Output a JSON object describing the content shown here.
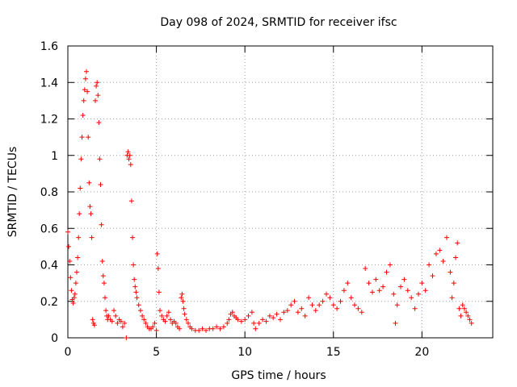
{
  "chart_data": {
    "type": "scatter",
    "title": "Day 098 of 2024, SRMTID for receiver ifsc",
    "xlabel": "GPS time / hours",
    "ylabel": "SRMTID / TECUs",
    "xlim": [
      0,
      24
    ],
    "ylim": [
      0,
      1.6
    ],
    "x_ticks": [
      0,
      5,
      10,
      15,
      20
    ],
    "y_ticks": [
      0,
      0.2,
      0.4,
      0.6,
      0.8,
      1,
      1.2,
      1.4,
      1.6
    ],
    "x_tick_labels": [
      "0",
      "5",
      "10",
      "15",
      "20"
    ],
    "y_tick_labels": [
      "0",
      "0.2",
      "0.4",
      "0.6",
      "0.8",
      "1",
      "1.2",
      "1.4",
      "1.6"
    ],
    "grid": true,
    "marker": "+",
    "color": "#ff0000",
    "series": [
      {
        "name": "SRMTID",
        "points": [
          [
            0.0,
            0.58
          ],
          [
            0.05,
            0.5
          ],
          [
            0.1,
            0.42
          ],
          [
            0.15,
            0.33
          ],
          [
            0.2,
            0.26
          ],
          [
            0.25,
            0.21
          ],
          [
            0.3,
            0.19
          ],
          [
            0.35,
            0.22
          ],
          [
            0.4,
            0.24
          ],
          [
            0.45,
            0.3
          ],
          [
            0.5,
            0.36
          ],
          [
            0.55,
            0.44
          ],
          [
            0.6,
            0.55
          ],
          [
            0.65,
            0.68
          ],
          [
            0.7,
            0.82
          ],
          [
            0.75,
            0.98
          ],
          [
            0.8,
            1.1
          ],
          [
            0.85,
            1.22
          ],
          [
            0.9,
            1.3
          ],
          [
            0.95,
            1.36
          ],
          [
            1.0,
            1.42
          ],
          [
            1.05,
            1.46
          ],
          [
            1.1,
            1.35
          ],
          [
            1.15,
            1.1
          ],
          [
            1.2,
            0.85
          ],
          [
            1.25,
            0.72
          ],
          [
            1.3,
            0.68
          ],
          [
            1.35,
            0.55
          ],
          [
            1.4,
            0.1
          ],
          [
            1.45,
            0.08
          ],
          [
            1.5,
            0.07
          ],
          [
            1.55,
            1.3
          ],
          [
            1.6,
            1.38
          ],
          [
            1.65,
            1.4
          ],
          [
            1.7,
            1.33
          ],
          [
            1.75,
            1.18
          ],
          [
            1.8,
            0.98
          ],
          [
            1.85,
            0.84
          ],
          [
            1.9,
            0.62
          ],
          [
            1.95,
            0.42
          ],
          [
            2.0,
            0.34
          ],
          [
            2.05,
            0.3
          ],
          [
            2.1,
            0.22
          ],
          [
            2.15,
            0.15
          ],
          [
            2.2,
            0.12
          ],
          [
            2.25,
            0.1
          ],
          [
            2.3,
            0.12
          ],
          [
            2.4,
            0.1
          ],
          [
            2.5,
            0.09
          ],
          [
            2.6,
            0.15
          ],
          [
            2.7,
            0.12
          ],
          [
            2.8,
            0.08
          ],
          [
            2.9,
            0.1
          ],
          [
            3.0,
            0.09
          ],
          [
            3.1,
            0.06
          ],
          [
            3.2,
            0.08
          ],
          [
            3.3,
            0.0
          ],
          [
            3.35,
            1.0
          ],
          [
            3.4,
            1.02
          ],
          [
            3.45,
            0.98
          ],
          [
            3.5,
            1.0
          ],
          [
            3.55,
            0.95
          ],
          [
            3.6,
            0.75
          ],
          [
            3.65,
            0.55
          ],
          [
            3.7,
            0.4
          ],
          [
            3.75,
            0.32
          ],
          [
            3.8,
            0.28
          ],
          [
            3.85,
            0.25
          ],
          [
            3.9,
            0.22
          ],
          [
            4.0,
            0.18
          ],
          [
            4.1,
            0.15
          ],
          [
            4.2,
            0.12
          ],
          [
            4.3,
            0.1
          ],
          [
            4.4,
            0.08
          ],
          [
            4.5,
            0.06
          ],
          [
            4.6,
            0.05
          ],
          [
            4.7,
            0.05
          ],
          [
            4.8,
            0.06
          ],
          [
            4.9,
            0.08
          ],
          [
            5.0,
            0.04
          ],
          [
            5.05,
            0.46
          ],
          [
            5.1,
            0.38
          ],
          [
            5.15,
            0.25
          ],
          [
            5.2,
            0.15
          ],
          [
            5.3,
            0.12
          ],
          [
            5.4,
            0.1
          ],
          [
            5.5,
            0.09
          ],
          [
            5.6,
            0.12
          ],
          [
            5.7,
            0.14
          ],
          [
            5.8,
            0.1
          ],
          [
            5.9,
            0.08
          ],
          [
            6.0,
            0.09
          ],
          [
            6.1,
            0.08
          ],
          [
            6.2,
            0.06
          ],
          [
            6.3,
            0.05
          ],
          [
            6.4,
            0.22
          ],
          [
            6.45,
            0.24
          ],
          [
            6.5,
            0.2
          ],
          [
            6.55,
            0.16
          ],
          [
            6.6,
            0.13
          ],
          [
            6.7,
            0.1
          ],
          [
            6.8,
            0.08
          ],
          [
            6.9,
            0.06
          ],
          [
            7.0,
            0.05
          ],
          [
            7.2,
            0.04
          ],
          [
            7.4,
            0.04
          ],
          [
            7.6,
            0.05
          ],
          [
            7.8,
            0.04
          ],
          [
            8.0,
            0.05
          ],
          [
            8.2,
            0.05
          ],
          [
            8.4,
            0.06
          ],
          [
            8.6,
            0.05
          ],
          [
            8.8,
            0.06
          ],
          [
            9.0,
            0.08
          ],
          [
            9.1,
            0.1
          ],
          [
            9.2,
            0.13
          ],
          [
            9.3,
            0.14
          ],
          [
            9.4,
            0.12
          ],
          [
            9.5,
            0.11
          ],
          [
            9.6,
            0.1
          ],
          [
            9.8,
            0.09
          ],
          [
            10.0,
            0.1
          ],
          [
            10.2,
            0.12
          ],
          [
            10.4,
            0.14
          ],
          [
            10.5,
            0.08
          ],
          [
            10.6,
            0.05
          ],
          [
            10.8,
            0.08
          ],
          [
            11.0,
            0.1
          ],
          [
            11.2,
            0.09
          ],
          [
            11.4,
            0.12
          ],
          [
            11.6,
            0.11
          ],
          [
            11.8,
            0.13
          ],
          [
            12.0,
            0.1
          ],
          [
            12.2,
            0.14
          ],
          [
            12.4,
            0.15
          ],
          [
            12.6,
            0.18
          ],
          [
            12.8,
            0.2
          ],
          [
            13.0,
            0.14
          ],
          [
            13.2,
            0.16
          ],
          [
            13.4,
            0.12
          ],
          [
            13.6,
            0.22
          ],
          [
            13.8,
            0.18
          ],
          [
            14.0,
            0.15
          ],
          [
            14.2,
            0.18
          ],
          [
            14.4,
            0.2
          ],
          [
            14.6,
            0.24
          ],
          [
            14.8,
            0.22
          ],
          [
            15.0,
            0.18
          ],
          [
            15.2,
            0.16
          ],
          [
            15.4,
            0.2
          ],
          [
            15.6,
            0.26
          ],
          [
            15.8,
            0.3
          ],
          [
            16.0,
            0.22
          ],
          [
            16.2,
            0.18
          ],
          [
            16.4,
            0.16
          ],
          [
            16.6,
            0.14
          ],
          [
            16.8,
            0.38
          ],
          [
            17.0,
            0.3
          ],
          [
            17.2,
            0.25
          ],
          [
            17.4,
            0.32
          ],
          [
            17.6,
            0.26
          ],
          [
            17.8,
            0.28
          ],
          [
            18.0,
            0.36
          ],
          [
            18.2,
            0.4
          ],
          [
            18.4,
            0.24
          ],
          [
            18.5,
            0.08
          ],
          [
            18.6,
            0.18
          ],
          [
            18.8,
            0.28
          ],
          [
            19.0,
            0.32
          ],
          [
            19.2,
            0.26
          ],
          [
            19.4,
            0.22
          ],
          [
            19.6,
            0.16
          ],
          [
            19.8,
            0.24
          ],
          [
            20.0,
            0.3
          ],
          [
            20.2,
            0.26
          ],
          [
            20.4,
            0.4
          ],
          [
            20.6,
            0.34
          ],
          [
            20.8,
            0.46
          ],
          [
            21.0,
            0.48
          ],
          [
            21.2,
            0.42
          ],
          [
            21.4,
            0.55
          ],
          [
            21.6,
            0.36
          ],
          [
            21.7,
            0.22
          ],
          [
            21.8,
            0.3
          ],
          [
            21.9,
            0.44
          ],
          [
            22.0,
            0.52
          ],
          [
            22.1,
            0.16
          ],
          [
            22.2,
            0.12
          ],
          [
            22.3,
            0.18
          ],
          [
            22.4,
            0.16
          ],
          [
            22.5,
            0.14
          ],
          [
            22.6,
            0.12
          ],
          [
            22.7,
            0.1
          ],
          [
            22.8,
            0.08
          ]
        ]
      }
    ]
  }
}
